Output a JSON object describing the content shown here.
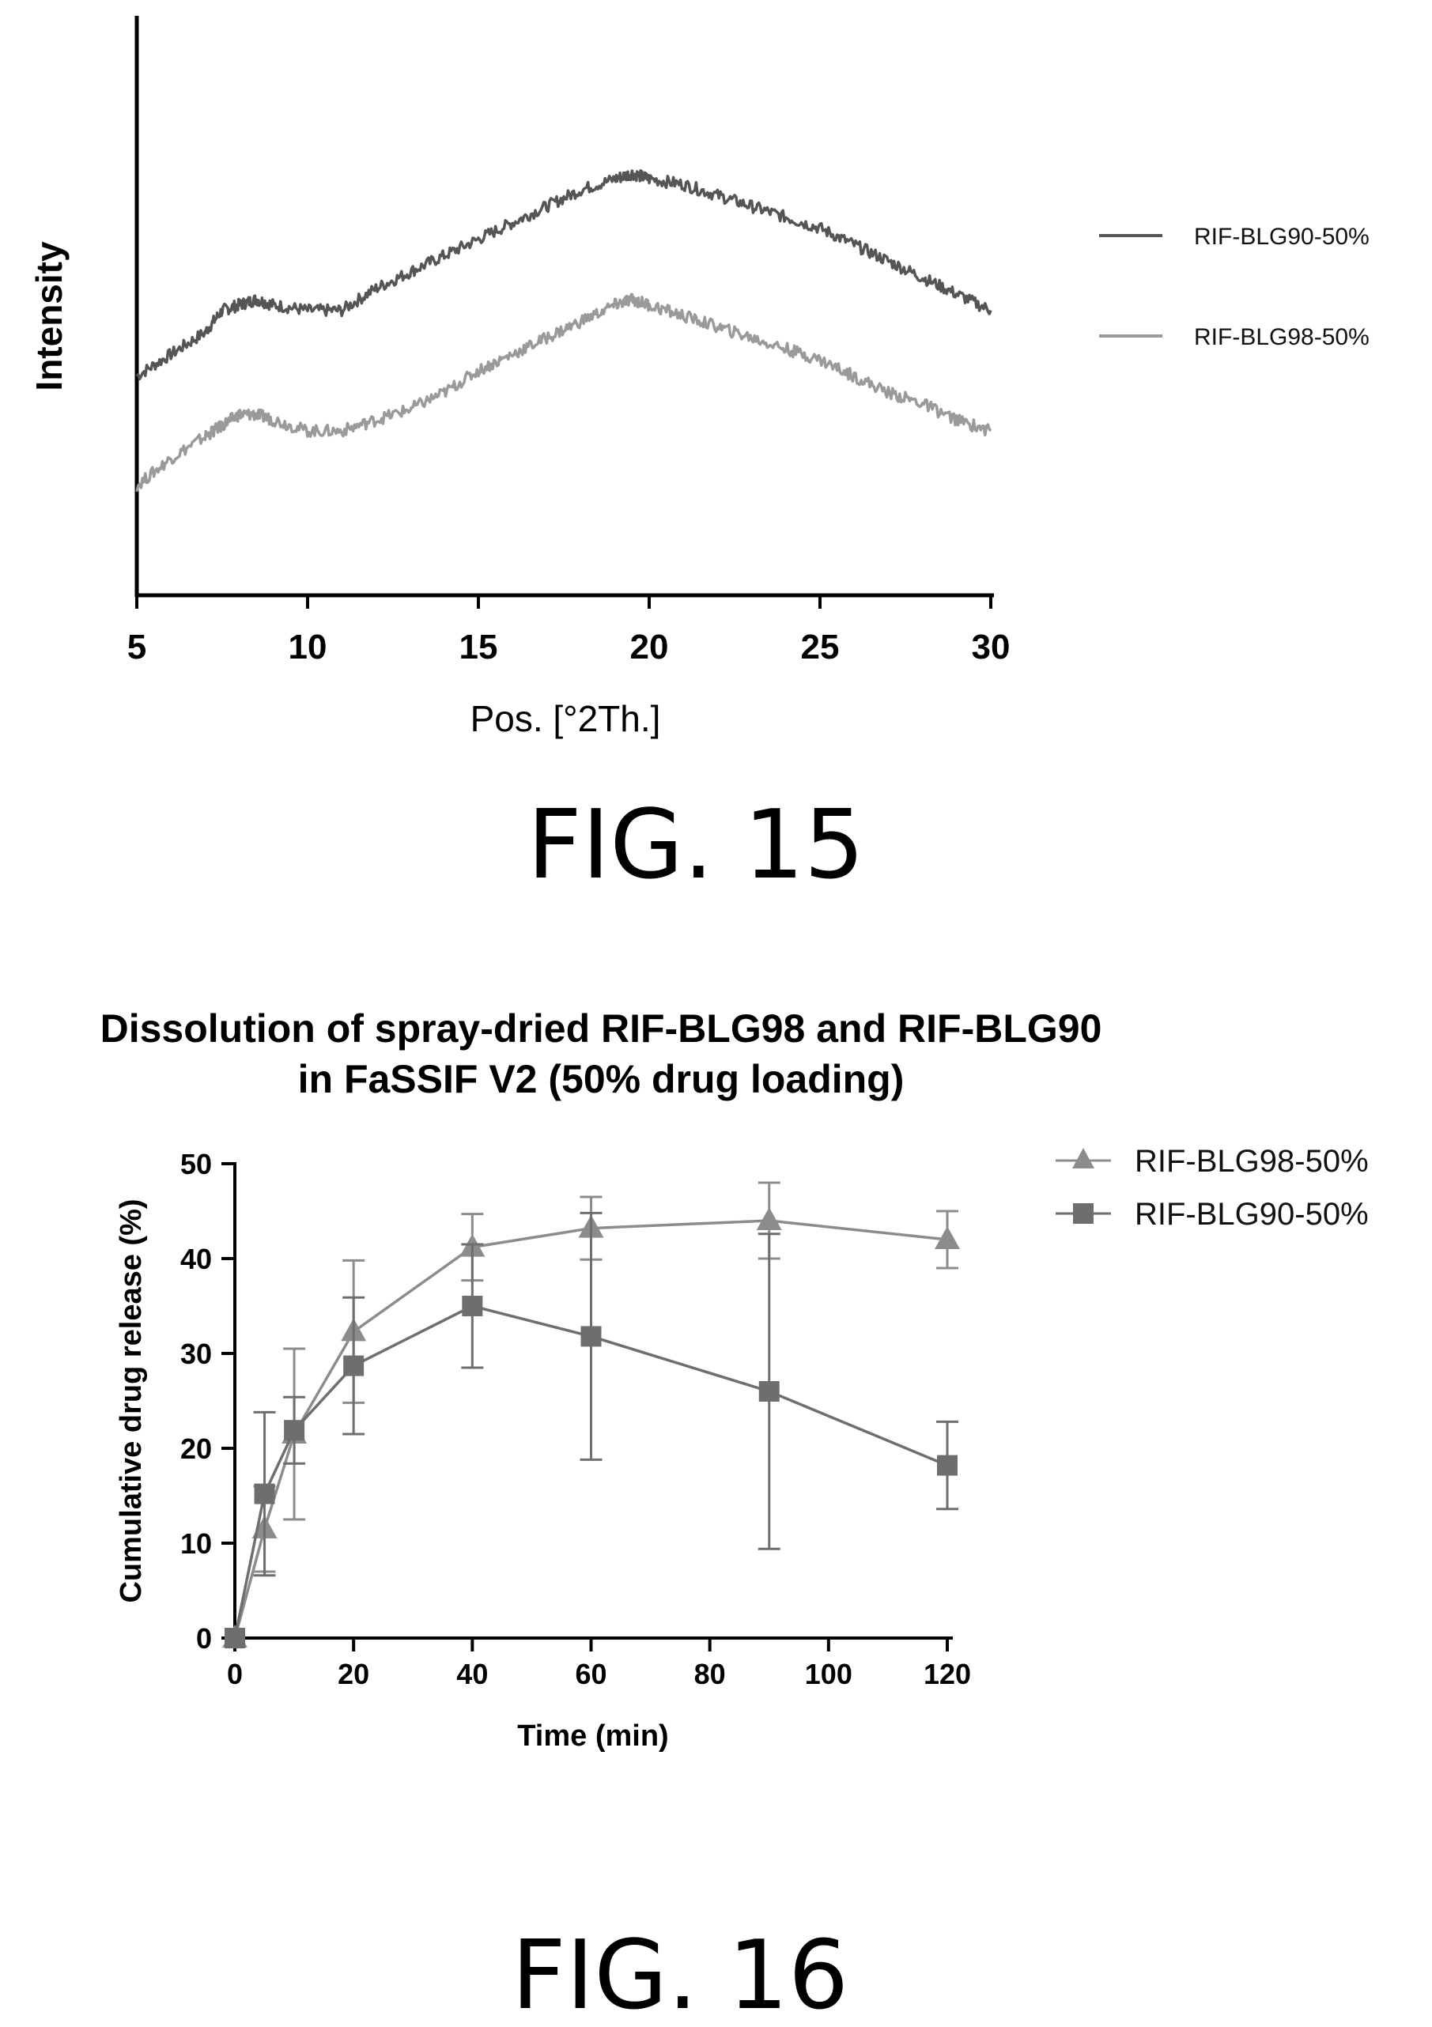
{
  "figures": {
    "fig15_label": "FIG. 15",
    "fig16_label": "FIG. 16"
  },
  "chart_data": [
    {
      "type": "line",
      "title": "",
      "xlabel": "Pos. [°2Th.]",
      "ylabel": "Intensity",
      "xlim": [
        5,
        30
      ],
      "xticks": [
        "5",
        "10",
        "15",
        "20",
        "25",
        "30"
      ],
      "y_scale": "arbitrary units, no tick labels",
      "legend_position": "right",
      "series": [
        {
          "name": "RIF-BLG90-50%",
          "color": "#555555",
          "x": [
            5,
            6,
            7,
            7.5,
            8,
            8.5,
            9,
            10,
            11,
            12,
            13,
            14,
            15,
            16,
            17,
            18,
            19,
            19.5,
            20,
            21,
            22,
            23,
            24,
            25,
            26,
            27,
            28,
            29,
            30
          ],
          "y": [
            40,
            44,
            48,
            52,
            53,
            54,
            53,
            52,
            52,
            56,
            59,
            62,
            65,
            68,
            71,
            74,
            76,
            77,
            76,
            75,
            73,
            71,
            69,
            67,
            64,
            61,
            58,
            55,
            52
          ]
        },
        {
          "name": "RIF-BLG98-50%",
          "color": "#9a9a9a",
          "x": [
            5,
            6,
            7,
            7.5,
            8,
            8.5,
            9,
            10,
            11,
            12,
            13,
            14,
            15,
            16,
            17,
            18,
            19,
            19.5,
            20,
            21,
            22,
            23,
            24,
            25,
            26,
            27,
            28,
            29,
            30
          ],
          "y": [
            20,
            25,
            29,
            31,
            33,
            33,
            32,
            30,
            30,
            32,
            34,
            37,
            41,
            44,
            47,
            50,
            53,
            54,
            53,
            51,
            49,
            47,
            45,
            43,
            40,
            37,
            35,
            32,
            30
          ]
        }
      ]
    },
    {
      "type": "line",
      "title": [
        "Dissolution of spray-dried RIF-BLG98 and RIF-BLG90",
        "in FaSSIF V2 (50% drug loading)"
      ],
      "xlabel": "Time (min)",
      "ylabel": "Cumulative drug release (%)",
      "xlim": [
        0,
        120
      ],
      "ylim": [
        0,
        50
      ],
      "xticks": [
        "0",
        "20",
        "40",
        "60",
        "80",
        "100",
        "120"
      ],
      "yticks": [
        "0",
        "10",
        "20",
        "30",
        "40",
        "50"
      ],
      "legend_position": "top-right",
      "x": [
        0,
        5,
        10,
        20,
        40,
        60,
        90,
        120
      ],
      "series": [
        {
          "name": "RIF-BLG98-50%",
          "marker": "triangle",
          "color": "#8c8c8c",
          "values": [
            0,
            11.5,
            21.5,
            32.3,
            41.2,
            43.2,
            44.0,
            42.0
          ],
          "errors": [
            0,
            4.5,
            9.0,
            7.5,
            3.5,
            3.3,
            4.0,
            3.0
          ]
        },
        {
          "name": "RIF-BLG90-50%",
          "marker": "square",
          "color": "#6e6e6e",
          "values": [
            0,
            15.2,
            21.9,
            28.7,
            35.0,
            31.8,
            26.0,
            18.2
          ],
          "errors": [
            0,
            8.6,
            3.5,
            7.2,
            6.5,
            13.0,
            16.6,
            4.6
          ]
        }
      ]
    }
  ]
}
